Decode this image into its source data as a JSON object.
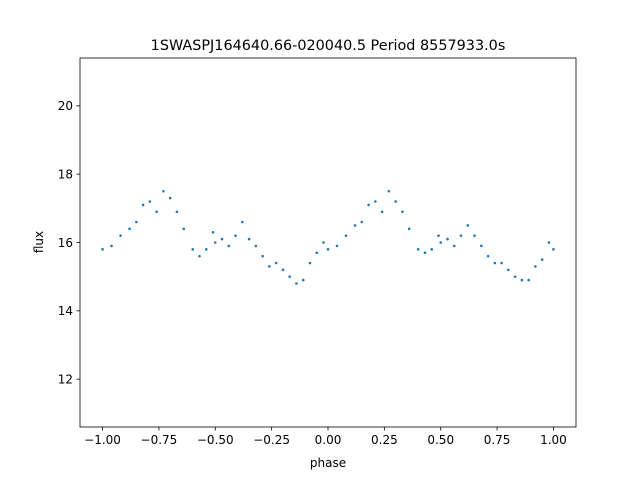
{
  "chart_data": {
    "type": "scatter",
    "title": "1SWASPJ164640.66-020040.5 Period 8557933.0s",
    "xlabel": "phase",
    "ylabel": "flux",
    "xlim": [
      -1.1,
      1.1
    ],
    "ylim": [
      10.6,
      21.4
    ],
    "xticks": [
      -1.0,
      -0.75,
      -0.5,
      -0.25,
      0.0,
      0.25,
      0.5,
      0.75,
      1.0
    ],
    "xtick_labels": [
      "−1.00",
      "−0.75",
      "−0.50",
      "−0.25",
      "0.00",
      "0.25",
      "0.50",
      "0.75",
      "1.00"
    ],
    "yticks": [
      12,
      14,
      16,
      18,
      20
    ],
    "ytick_labels": [
      "12",
      "14",
      "16",
      "18",
      "20"
    ],
    "grid": false,
    "legend": "none",
    "color": "#1f77b4",
    "series": [
      {
        "x": [
          -1.0,
          -0.96,
          -0.92,
          -0.88,
          -0.85,
          -0.82,
          -0.79,
          -0.76,
          -0.73,
          -0.7,
          -0.67,
          -0.64,
          -0.6,
          -0.57,
          -0.54,
          -0.51,
          -0.5,
          -0.47,
          -0.44,
          -0.41,
          -0.38,
          -0.35,
          -0.32,
          -0.29,
          -0.26,
          -0.23,
          -0.2,
          -0.17,
          -0.14,
          -0.11,
          -0.08,
          -0.05,
          -0.02,
          0.0,
          0.04,
          0.08,
          0.12,
          0.15,
          0.18,
          0.21,
          0.24,
          0.27,
          0.3,
          0.33,
          0.36,
          0.4,
          0.43,
          0.46,
          0.49,
          0.5,
          0.53,
          0.56,
          0.59,
          0.62,
          0.65,
          0.68,
          0.71,
          0.74,
          0.77,
          0.8,
          0.83,
          0.86,
          0.89,
          0.92,
          0.95,
          0.98,
          1.0
        ],
        "y": [
          15.8,
          15.9,
          16.2,
          16.4,
          16.6,
          17.1,
          17.2,
          16.9,
          17.5,
          17.3,
          16.9,
          16.4,
          15.8,
          15.6,
          15.8,
          16.3,
          16.0,
          16.1,
          15.9,
          16.2,
          16.6,
          16.1,
          15.9,
          15.6,
          15.3,
          15.4,
          15.2,
          15.0,
          14.8,
          14.9,
          15.4,
          15.7,
          16.0,
          15.8,
          15.9,
          16.2,
          16.5,
          16.6,
          17.1,
          17.2,
          16.9,
          17.5,
          17.2,
          16.9,
          16.4,
          15.8,
          15.7,
          15.8,
          16.2,
          16.0,
          16.1,
          15.9,
          16.2,
          16.5,
          16.2,
          15.9,
          15.6,
          15.4,
          15.4,
          15.2,
          15.0,
          14.9,
          14.9,
          15.3,
          15.5,
          16.0,
          15.8
        ]
      }
    ]
  }
}
